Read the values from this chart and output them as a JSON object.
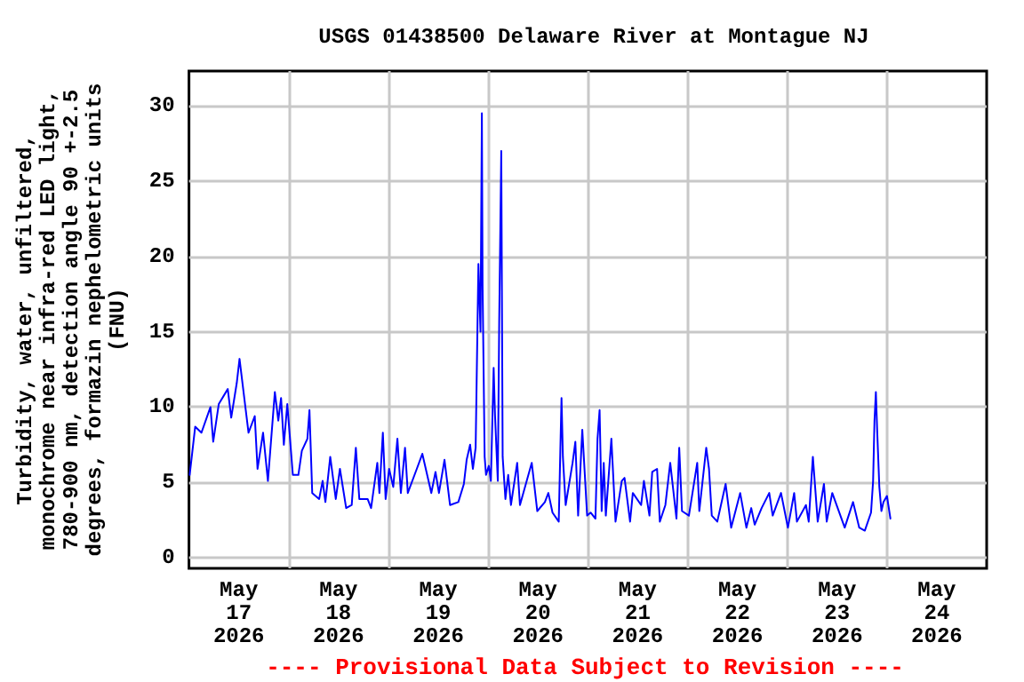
{
  "chart_data": {
    "type": "line",
    "title": "USGS 01438500 Delaware River at Montague NJ",
    "ylabel": "Turbidity, water, unfiltered,\nmonochrome near infra-red LED light,\n780-900 nm, detection angle 90 +-2.5\ndegrees, formazin nephelometric units\n(FNU)",
    "annotations": [
      "---- Provisional Data Subject to Revision ----"
    ],
    "xlim": [
      "2026-05-17T00:00",
      "2026-05-25T00:00"
    ],
    "xticks": [
      {
        "value": "2026-05-17T12:00",
        "label": "May\n17\n2026"
      },
      {
        "value": "2026-05-18T12:00",
        "label": "May\n18\n2026"
      },
      {
        "value": "2026-05-19T12:00",
        "label": "May\n19\n2026"
      },
      {
        "value": "2026-05-20T12:00",
        "label": "May\n20\n2026"
      },
      {
        "value": "2026-05-21T12:00",
        "label": "May\n21\n2026"
      },
      {
        "value": "2026-05-22T12:00",
        "label": "May\n22\n2026"
      },
      {
        "value": "2026-05-23T12:00",
        "label": "May\n23\n2026"
      },
      {
        "value": "2026-05-24T12:00",
        "label": "May\n24\n2026"
      },
      {
        "value": "2026-05-18T00:00",
        "label": null
      },
      {
        "value": "2026-05-19T00:00",
        "label": null
      },
      {
        "value": "2026-05-20T00:00",
        "label": null
      },
      {
        "value": "2026-05-21T00:00",
        "label": null
      },
      {
        "value": "2026-05-22T00:00",
        "label": null
      },
      {
        "value": "2026-05-23T00:00",
        "label": null
      },
      {
        "value": "2026-05-24T00:00",
        "label": null
      }
    ],
    "ylim": [
      -0.7,
      32.3
    ],
    "yticks": [
      0,
      5,
      10,
      15,
      20,
      25,
      30
    ],
    "grid": true,
    "marker": "none",
    "line_style": "solid",
    "series": [
      {
        "color": "#0000ff",
        "x": [
          "2026-05-17T00:10",
          "2026-05-17T01:30",
          "2026-05-17T03:00",
          "2026-05-17T05:10",
          "2026-05-17T05:50",
          "2026-05-17T07:10",
          "2026-05-17T09:20",
          "2026-05-17T10:10",
          "2026-05-17T11:30",
          "2026-05-17T12:10",
          "2026-05-17T13:40",
          "2026-05-17T14:20",
          "2026-05-17T15:50",
          "2026-05-17T16:30",
          "2026-05-17T17:50",
          "2026-05-17T19:00",
          "2026-05-17T20:40",
          "2026-05-17T21:30",
          "2026-05-17T22:10",
          "2026-05-17T22:50",
          "2026-05-17T23:40",
          "2026-05-18T01:00",
          "2026-05-18T02:20",
          "2026-05-18T03:10",
          "2026-05-18T04:30",
          "2026-05-18T05:00",
          "2026-05-18T05:40",
          "2026-05-18T07:20",
          "2026-05-18T08:10",
          "2026-05-18T08:50",
          "2026-05-18T10:00",
          "2026-05-18T11:20",
          "2026-05-18T12:20",
          "2026-05-18T13:50",
          "2026-05-18T15:10",
          "2026-05-18T16:10",
          "2026-05-18T17:00",
          "2026-05-18T19:00",
          "2026-05-18T19:50",
          "2026-05-18T21:20",
          "2026-05-18T21:50",
          "2026-05-18T22:40",
          "2026-05-18T23:20",
          "2026-05-19T00:10",
          "2026-05-19T01:10",
          "2026-05-19T02:10",
          "2026-05-19T03:00",
          "2026-05-19T04:00",
          "2026-05-19T04:40",
          "2026-05-19T06:50",
          "2026-05-19T08:10",
          "2026-05-19T10:20",
          "2026-05-19T11:20",
          "2026-05-19T12:10",
          "2026-05-19T13:30",
          "2026-05-19T14:50",
          "2026-05-19T16:50",
          "2026-05-19T18:10",
          "2026-05-19T18:50",
          "2026-05-19T19:40",
          "2026-05-19T20:20",
          "2026-05-19T21:00",
          "2026-05-19T21:40",
          "2026-05-19T22:10",
          "2026-05-19T22:30",
          "2026-05-19T22:40",
          "2026-05-19T23:10",
          "2026-05-19T23:30",
          "2026-05-20T00:10",
          "2026-05-20T00:40",
          "2026-05-20T01:20",
          "2026-05-20T01:40",
          "2026-05-20T02:20",
          "2026-05-20T02:40",
          "2026-05-20T03:10",
          "2026-05-20T03:30",
          "2026-05-20T04:10",
          "2026-05-20T04:50",
          "2026-05-20T05:30",
          "2026-05-20T07:00",
          "2026-05-20T07:40",
          "2026-05-20T10:30",
          "2026-05-20T11:50",
          "2026-05-20T13:40",
          "2026-05-20T14:30",
          "2026-05-20T15:30",
          "2026-05-20T17:00",
          "2026-05-20T17:40",
          "2026-05-20T18:00",
          "2026-05-20T18:40",
          "2026-05-20T20:20",
          "2026-05-20T21:00",
          "2026-05-20T21:40",
          "2026-05-20T22:40",
          "2026-05-20T23:50",
          "2026-05-21T00:40",
          "2026-05-21T01:50",
          "2026-05-21T02:20",
          "2026-05-21T02:50",
          "2026-05-21T03:20",
          "2026-05-21T03:50",
          "2026-05-21T04:20",
          "2026-05-21T05:40",
          "2026-05-21T06:40",
          "2026-05-21T08:10",
          "2026-05-21T08:50",
          "2026-05-21T10:10",
          "2026-05-21T10:50",
          "2026-05-21T12:50",
          "2026-05-21T13:30",
          "2026-05-21T14:50",
          "2026-05-21T15:30",
          "2026-05-21T16:40",
          "2026-05-21T17:20",
          "2026-05-21T18:40",
          "2026-05-21T19:50",
          "2026-05-21T21:20",
          "2026-05-21T22:00",
          "2026-05-21T22:40",
          "2026-05-22T00:20",
          "2026-05-22T02:20",
          "2026-05-22T02:50",
          "2026-05-22T04:30",
          "2026-05-22T05:10",
          "2026-05-22T05:50",
          "2026-05-22T07:10",
          "2026-05-22T09:10",
          "2026-05-22T10:30",
          "2026-05-22T12:40",
          "2026-05-22T14:10",
          "2026-05-22T15:20",
          "2026-05-22T16:10",
          "2026-05-22T17:50",
          "2026-05-22T19:40",
          "2026-05-22T20:30",
          "2026-05-22T22:30",
          "2026-05-23T00:10",
          "2026-05-23T01:40",
          "2026-05-23T02:20",
          "2026-05-23T04:30",
          "2026-05-23T05:10",
          "2026-05-23T06:10",
          "2026-05-23T07:20",
          "2026-05-23T08:50",
          "2026-05-23T09:30",
          "2026-05-23T10:50",
          "2026-05-23T13:50",
          "2026-05-23T15:50",
          "2026-05-23T17:20",
          "2026-05-23T18:40",
          "2026-05-23T20:10",
          "2026-05-23T20:40",
          "2026-05-23T21:00",
          "2026-05-23T21:20",
          "2026-05-23T21:40",
          "2026-05-23T22:10",
          "2026-05-23T22:40",
          "2026-05-23T23:10",
          "2026-05-24T00:00",
          "2026-05-24T00:20",
          "2026-05-24T00:50"
        ],
        "values": [
          5.5,
          8.7,
          8.3,
          10.0,
          7.7,
          10.2,
          11.2,
          9.3,
          11.6,
          13.2,
          9.8,
          8.3,
          9.4,
          5.9,
          8.3,
          5.1,
          11.0,
          9.1,
          10.6,
          7.5,
          10.2,
          5.5,
          5.5,
          7.1,
          7.9,
          9.8,
          4.3,
          3.9,
          5.1,
          3.7,
          6.7,
          3.9,
          5.9,
          3.3,
          3.5,
          7.3,
          3.9,
          3.9,
          3.3,
          6.3,
          4.3,
          8.3,
          3.9,
          5.9,
          4.7,
          7.9,
          4.3,
          7.3,
          4.3,
          5.9,
          6.9,
          4.3,
          5.7,
          4.3,
          6.5,
          3.5,
          3.7,
          4.9,
          6.5,
          7.5,
          5.9,
          7.3,
          19.5,
          15.0,
          29.5,
          18.1,
          6.7,
          5.5,
          6.1,
          5.1,
          12.6,
          9.4,
          5.1,
          15.6,
          27.0,
          6.7,
          3.9,
          5.5,
          3.5,
          6.3,
          3.5,
          6.3,
          3.1,
          3.7,
          4.3,
          3.0,
          2.4,
          10.6,
          6.7,
          3.5,
          6.3,
          7.7,
          2.8,
          8.5,
          2.8,
          3.0,
          2.6,
          7.9,
          9.8,
          3.1,
          6.3,
          2.8,
          7.9,
          2.4,
          5.1,
          5.3,
          2.4,
          4.3,
          3.5,
          5.1,
          2.8,
          5.7,
          5.9,
          2.4,
          3.5,
          6.3,
          2.6,
          7.3,
          3.1,
          2.8,
          6.3,
          3.1,
          7.3,
          5.9,
          2.8,
          2.4,
          4.9,
          2.0,
          4.3,
          2.0,
          3.3,
          2.2,
          3.3,
          4.3,
          2.8,
          4.3,
          2.0,
          4.3,
          2.4,
          3.5,
          2.4,
          6.7,
          2.4,
          4.9,
          2.4,
          4.3,
          2.0,
          3.7,
          2.0,
          1.8,
          3.0,
          5.1,
          9.1,
          11.0,
          8.3,
          4.7,
          3.1,
          3.7,
          4.1,
          3.5,
          2.6
        ]
      }
    ]
  }
}
